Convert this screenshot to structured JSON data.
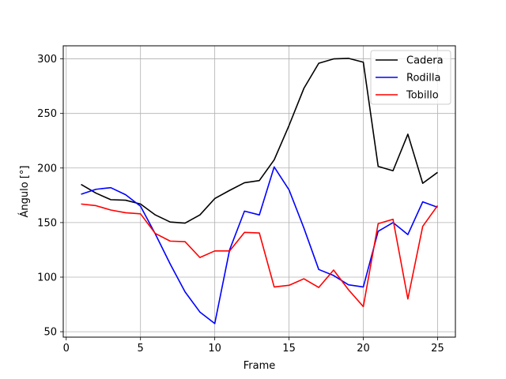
{
  "chart_data": {
    "type": "line",
    "title": "",
    "xlabel": "Frame",
    "ylabel": "Ángulo [°]",
    "xlim": [
      -0.2,
      26.2
    ],
    "ylim": [
      45,
      312
    ],
    "xticks": [
      0,
      5,
      10,
      15,
      20,
      25
    ],
    "yticks": [
      50,
      100,
      150,
      200,
      250,
      300
    ],
    "grid": true,
    "legend_position": "top-right",
    "x": [
      1,
      2,
      3,
      4,
      5,
      6,
      7,
      8,
      9,
      10,
      11,
      12,
      13,
      14,
      15,
      16,
      17,
      18,
      19,
      20,
      21,
      22,
      23,
      24,
      25
    ],
    "series": [
      {
        "name": "Cadera",
        "color": "#000000",
        "values": [
          185,
          177,
          171,
          170.5,
          167,
          157,
          150.5,
          149.5,
          157,
          172,
          179.5,
          186.5,
          188.5,
          207.5,
          239,
          273,
          296,
          300,
          300.5,
          297,
          201.5,
          197.5,
          231,
          186,
          196
        ]
      },
      {
        "name": "Rodilla",
        "color": "#0000ff",
        "values": [
          176,
          180.5,
          182,
          175.5,
          165,
          139.5,
          112,
          86.5,
          68,
          57.5,
          125,
          160.5,
          157,
          201,
          180,
          145,
          107,
          101.5,
          93,
          91,
          142,
          150,
          139,
          169,
          164
        ]
      },
      {
        "name": "Tobillo",
        "color": "#ff0000",
        "values": [
          167,
          165.5,
          161.5,
          159,
          158,
          140,
          133,
          132.5,
          118,
          124,
          124,
          141,
          140.5,
          91,
          92.5,
          98.5,
          90.5,
          106.5,
          88.5,
          73,
          149,
          153,
          80,
          146.5,
          165.5
        ]
      }
    ]
  }
}
